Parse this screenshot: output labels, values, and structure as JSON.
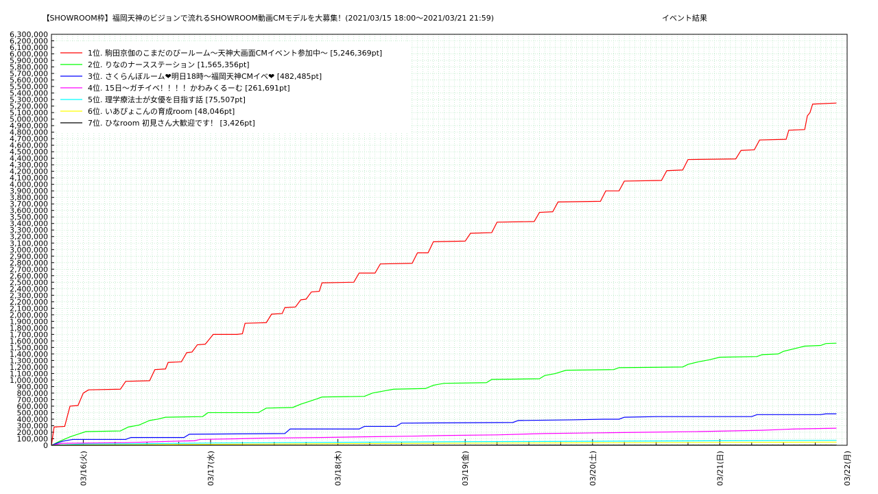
{
  "chart_data": {
    "type": "line",
    "title": "【SHOWROOM枠】福岡天神のビジョンで流れるSHOWROOM動画CMモデルを大募集！(2021/03/15 18:00〜2021/03/21 21:59)",
    "subtitle": "イベント結果",
    "xlabel": "",
    "ylabel": "",
    "x_range": [
      "2021/03/15 18:00",
      "2021/03/22 00:00"
    ],
    "ylim": [
      0,
      6300000
    ],
    "y_tick_step": 100000,
    "x_ticks": [
      "03/16(火)",
      "03/17(水)",
      "03/18(木)",
      "03/19(金)",
      "03/20(土)",
      "03/21(日)",
      "03/22(月)"
    ],
    "grid": true,
    "legend_position": "top-left",
    "series": [
      {
        "name": "1位. 駒田京伽のこまだのびールーム〜天神大画面CMイベント参加中〜 [5,246,369pt]",
        "color": "#ff0000",
        "points": [
          [
            "03/15 18:00",
            0
          ],
          [
            "03/15 18:30",
            280000
          ],
          [
            "03/15 20:30",
            290000
          ],
          [
            "03/15 21:30",
            600000
          ],
          [
            "03/15 23:00",
            610000
          ],
          [
            "03/16 00:00",
            800000
          ],
          [
            "03/16 01:00",
            850000
          ],
          [
            "03/16 07:00",
            860000
          ],
          [
            "03/16 08:00",
            980000
          ],
          [
            "03/16 12:30",
            990000
          ],
          [
            "03/16 13:30",
            1160000
          ],
          [
            "03/16 15:30",
            1170000
          ],
          [
            "03/16 16:00",
            1270000
          ],
          [
            "03/16 18:30",
            1280000
          ],
          [
            "03/16 19:30",
            1420000
          ],
          [
            "03/16 20:30",
            1430000
          ],
          [
            "03/16 21:30",
            1540000
          ],
          [
            "03/16 23:00",
            1550000
          ],
          [
            "03/17 00:30",
            1700000
          ],
          [
            "03/17 05:00",
            1700000
          ],
          [
            "03/17 06:00",
            1710000
          ],
          [
            "03/17 06:30",
            1870000
          ],
          [
            "03/17 10:30",
            1880000
          ],
          [
            "03/17 11:30",
            2010000
          ],
          [
            "03/17 13:30",
            2020000
          ],
          [
            "03/17 14:00",
            2110000
          ],
          [
            "03/17 16:00",
            2120000
          ],
          [
            "03/17 17:00",
            2230000
          ],
          [
            "03/17 18:00",
            2240000
          ],
          [
            "03/17 19:00",
            2350000
          ],
          [
            "03/17 20:30",
            2360000
          ],
          [
            "03/17 21:00",
            2490000
          ],
          [
            "03/18 03:00",
            2500000
          ],
          [
            "03/18 04:00",
            2640000
          ],
          [
            "03/18 07:00",
            2640000
          ],
          [
            "03/18 08:00",
            2780000
          ],
          [
            "03/18 14:00",
            2790000
          ],
          [
            "03/18 15:00",
            2950000
          ],
          [
            "03/18 17:00",
            2950000
          ],
          [
            "03/18 18:00",
            3120000
          ],
          [
            "03/19 00:00",
            3130000
          ],
          [
            "03/19 01:00",
            3250000
          ],
          [
            "03/19 05:00",
            3260000
          ],
          [
            "03/19 06:00",
            3420000
          ],
          [
            "03/19 13:00",
            3430000
          ],
          [
            "03/19 14:00",
            3570000
          ],
          [
            "03/19 16:30",
            3580000
          ],
          [
            "03/19 17:30",
            3730000
          ],
          [
            "03/20 01:30",
            3740000
          ],
          [
            "03/20 02:30",
            3900000
          ],
          [
            "03/20 05:00",
            3900000
          ],
          [
            "03/20 06:00",
            4050000
          ],
          [
            "03/20 13:00",
            4060000
          ],
          [
            "03/20 14:00",
            4210000
          ],
          [
            "03/20 17:00",
            4220000
          ],
          [
            "03/20 18:00",
            4380000
          ],
          [
            "03/21 03:00",
            4390000
          ],
          [
            "03/21 04:00",
            4520000
          ],
          [
            "03/21 06:30",
            4530000
          ],
          [
            "03/21 07:30",
            4680000
          ],
          [
            "03/21 12:30",
            4690000
          ],
          [
            "03/21 13:00",
            4830000
          ],
          [
            "03/21 16:00",
            4840000
          ],
          [
            "03/21 16:30",
            5050000
          ],
          [
            "03/21 17:00",
            5100000
          ],
          [
            "03/21 17:30",
            5230000
          ],
          [
            "03/21 21:59",
            5246369
          ]
        ]
      },
      {
        "name": "2位. りなのナースステーション [1,565,356pt]",
        "color": "#00ff00",
        "points": [
          [
            "03/15 18:00",
            0
          ],
          [
            "03/15 19:30",
            60000
          ],
          [
            "03/15 21:30",
            130000
          ],
          [
            "03/15 23:00",
            170000
          ],
          [
            "03/16 00:30",
            210000
          ],
          [
            "03/16 07:00",
            220000
          ],
          [
            "03/16 08:30",
            280000
          ],
          [
            "03/16 10:30",
            310000
          ],
          [
            "03/16 12:30",
            380000
          ],
          [
            "03/16 14:00",
            400000
          ],
          [
            "03/16 15:30",
            430000
          ],
          [
            "03/16 22:30",
            440000
          ],
          [
            "03/16 23:30",
            500000
          ],
          [
            "03/17 09:00",
            500000
          ],
          [
            "03/17 10:30",
            570000
          ],
          [
            "03/17 15:30",
            580000
          ],
          [
            "03/17 17:00",
            630000
          ],
          [
            "03/17 18:30",
            670000
          ],
          [
            "03/17 20:00",
            710000
          ],
          [
            "03/17 21:00",
            740000
          ],
          [
            "03/18 05:00",
            750000
          ],
          [
            "03/18 06:30",
            800000
          ],
          [
            "03/18 08:30",
            830000
          ],
          [
            "03/18 10:30",
            860000
          ],
          [
            "03/18 16:30",
            870000
          ],
          [
            "03/18 18:00",
            920000
          ],
          [
            "03/18 20:00",
            950000
          ],
          [
            "03/19 04:00",
            960000
          ],
          [
            "03/19 05:00",
            1010000
          ],
          [
            "03/19 14:00",
            1020000
          ],
          [
            "03/19 15:00",
            1070000
          ],
          [
            "03/19 17:00",
            1100000
          ],
          [
            "03/19 19:00",
            1150000
          ],
          [
            "03/20 04:00",
            1160000
          ],
          [
            "03/20 05:00",
            1190000
          ],
          [
            "03/20 17:00",
            1200000
          ],
          [
            "03/20 18:00",
            1240000
          ],
          [
            "03/20 20:00",
            1280000
          ],
          [
            "03/20 22:00",
            1310000
          ],
          [
            "03/21 00:00",
            1350000
          ],
          [
            "03/21 07:00",
            1360000
          ],
          [
            "03/21 08:00",
            1390000
          ],
          [
            "03/21 11:00",
            1400000
          ],
          [
            "03/21 12:00",
            1440000
          ],
          [
            "03/21 14:00",
            1480000
          ],
          [
            "03/21 16:00",
            1520000
          ],
          [
            "03/21 19:00",
            1530000
          ],
          [
            "03/21 20:00",
            1560000
          ],
          [
            "03/21 21:59",
            1565356
          ]
        ]
      },
      {
        "name": "3位. さくらんぼルーム❤明日18時〜福岡天神CMイベ❤ [482,485pt]",
        "color": "#0000ff",
        "points": [
          [
            "03/15 18:00",
            0
          ],
          [
            "03/15 20:00",
            60000
          ],
          [
            "03/15 22:00",
            90000
          ],
          [
            "03/16 08:00",
            90000
          ],
          [
            "03/16 09:00",
            120000
          ],
          [
            "03/16 19:00",
            120000
          ],
          [
            "03/16 20:00",
            170000
          ],
          [
            "03/17 14:00",
            180000
          ],
          [
            "03/17 15:00",
            250000
          ],
          [
            "03/18 04:00",
            250000
          ],
          [
            "03/18 05:00",
            290000
          ],
          [
            "03/18 11:00",
            290000
          ],
          [
            "03/18 12:00",
            340000
          ],
          [
            "03/19 09:00",
            350000
          ],
          [
            "03/19 10:00",
            380000
          ],
          [
            "03/19 20:00",
            390000
          ],
          [
            "03/20 02:00",
            400000
          ],
          [
            "03/20 05:00",
            400000
          ],
          [
            "03/20 06:00",
            430000
          ],
          [
            "03/20 12:00",
            440000
          ],
          [
            "03/21 06:00",
            440000
          ],
          [
            "03/21 07:00",
            470000
          ],
          [
            "03/21 19:00",
            470000
          ],
          [
            "03/21 20:00",
            482485
          ],
          [
            "03/21 21:59",
            482485
          ]
        ]
      },
      {
        "name": "4位. 15日〜ガチイベ！！！！かわみくるーむ [261,691pt]",
        "color": "#ff00ff",
        "points": [
          [
            "03/15 18:00",
            0
          ],
          [
            "03/15 20:00",
            30000
          ],
          [
            "03/16 08:00",
            40000
          ],
          [
            "03/16 16:00",
            60000
          ],
          [
            "03/16 21:00",
            70000
          ],
          [
            "03/16 22:00",
            90000
          ],
          [
            "03/17 05:00",
            100000
          ],
          [
            "03/17 10:00",
            110000
          ],
          [
            "03/17 21:00",
            120000
          ],
          [
            "03/18 05:00",
            130000
          ],
          [
            "03/18 14:00",
            140000
          ],
          [
            "03/18 20:00",
            150000
          ],
          [
            "03/19 06:00",
            160000
          ],
          [
            "03/19 15:00",
            180000
          ],
          [
            "03/20 00:00",
            190000
          ],
          [
            "03/20 10:00",
            200000
          ],
          [
            "03/20 20:00",
            210000
          ],
          [
            "03/21 08:00",
            230000
          ],
          [
            "03/21 14:00",
            250000
          ],
          [
            "03/21 21:59",
            261691
          ]
        ]
      },
      {
        "name": "5位. 理学療法士が女優を目指す話 [75,507pt]",
        "color": "#00ffff",
        "points": [
          [
            "03/15 18:00",
            0
          ],
          [
            "03/16 00:00",
            20000
          ],
          [
            "03/16 12:00",
            25000
          ],
          [
            "03/17 00:00",
            35000
          ],
          [
            "03/17 12:00",
            40000
          ],
          [
            "03/18 00:00",
            45000
          ],
          [
            "03/18 12:00",
            50000
          ],
          [
            "03/19 00:00",
            55000
          ],
          [
            "03/19 12:00",
            58000
          ],
          [
            "03/20 00:00",
            62000
          ],
          [
            "03/20 12:00",
            66000
          ],
          [
            "03/21 00:00",
            70000
          ],
          [
            "03/21 12:00",
            73000
          ],
          [
            "03/21 21:59",
            75507
          ]
        ]
      },
      {
        "name": "6位. いあぴょこんの育成room [48,046pt]",
        "color": "#ffff00",
        "points": [
          [
            "03/15 18:00",
            0
          ],
          [
            "03/16 00:00",
            5000
          ],
          [
            "03/16 12:00",
            10000
          ],
          [
            "03/17 00:00",
            15000
          ],
          [
            "03/18 00:00",
            25000
          ],
          [
            "03/19 00:00",
            32000
          ],
          [
            "03/20 00:00",
            38000
          ],
          [
            "03/21 00:00",
            44000
          ],
          [
            "03/21 21:59",
            48046
          ]
        ]
      },
      {
        "name": "7位. ひなroom 初見さん大歓迎です！ [3,426pt]",
        "color": "#000000",
        "points": [
          [
            "03/15 18:00",
            0
          ],
          [
            "03/17 00:00",
            1000
          ],
          [
            "03/19 00:00",
            2000
          ],
          [
            "03/21 00:00",
            3000
          ],
          [
            "03/21 21:59",
            3426
          ]
        ]
      }
    ]
  }
}
